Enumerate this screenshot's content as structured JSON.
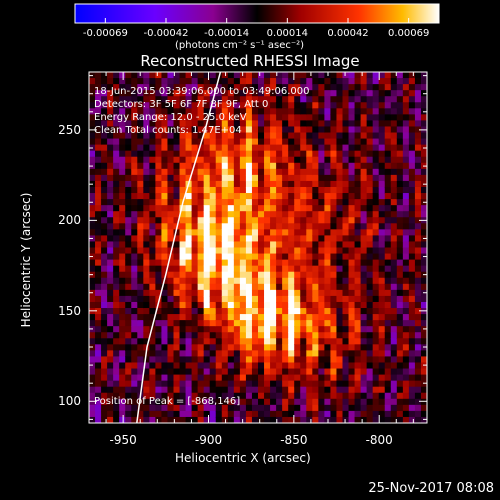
{
  "chart_data": {
    "type": "heatmap",
    "title": "Reconstructed RHESSI Image",
    "xlabel": "Heliocentric X (arcsec)",
    "ylabel": "Heliocentric Y (arcsec)",
    "xlim": [
      -970,
      -772
    ],
    "ylim": [
      88,
      282
    ],
    "x_ticks": [
      "-950",
      "-900",
      "-850",
      "-800"
    ],
    "y_ticks": [
      "100",
      "150",
      "200",
      "250"
    ],
    "colorbar": {
      "ticks": [
        "-0.00069",
        "-0.00042",
        "-0.00014",
        "0.00014",
        "0.00042",
        "0.00069"
      ],
      "units": "(photons cm⁻² s⁻¹ asec⁻²)",
      "range": [
        -0.00069,
        0.00069
      ]
    },
    "annotations": [
      "18-Jun-2015 03:39:06.000 to 03:49:06.000",
      "Detectors: 3F 5F 6F 7F 8F 9F, Att 0",
      "Energy Range: 12.0 - 25.0 keV",
      "Clean    Total counts: 1.47E+04"
    ],
    "peak_label": "Position of Peak = [-868,146]",
    "peak": [
      -868,
      146
    ],
    "limb_curve": [
      [
        -942,
        88
      ],
      [
        -936,
        130
      ],
      [
        -925,
        170
      ],
      [
        -915,
        210
      ],
      [
        -902,
        250
      ],
      [
        -893,
        282
      ]
    ]
  },
  "footer": {
    "date": "25-Nov-2017 08:08"
  },
  "colors": {
    "background": "#000000",
    "text": "#ffffff"
  }
}
